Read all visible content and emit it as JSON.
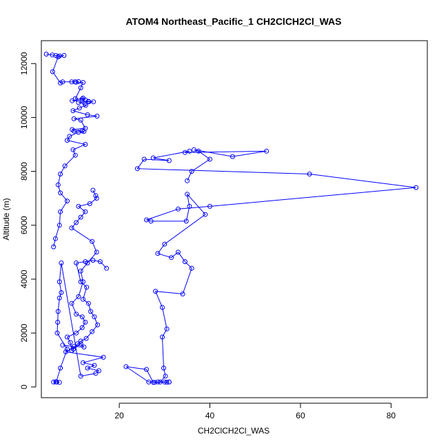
{
  "chart_data": {
    "type": "line",
    "title": "ATOM4 Northeast_Pacific_1 CH2ClCH2Cl_WAS",
    "xlabel": "CH2ClCH2Cl_WAS",
    "ylabel": "Altitude (m)",
    "xlim": [
      2.8,
      88.0
    ],
    "ylim": [
      -400,
      12850
    ],
    "x_ticks": [
      20,
      40,
      60,
      80
    ],
    "y_ticks": [
      0,
      2000,
      4000,
      6000,
      8000,
      10000,
      12000
    ],
    "color": "#0000ff",
    "marker": "open-circle",
    "grid": false,
    "series": [
      {
        "x": [
          3.9,
          5.2,
          6.0,
          6.8,
          7.8,
          6.5,
          5.3,
          7.0,
          7.5,
          9.5,
          10.2,
          11.0,
          10.5,
          12.0,
          11.5,
          10.3,
          12.5,
          11.8,
          12.0,
          9.6,
          13.2,
          14.3,
          13.3,
          11.0,
          12.4,
          12.6,
          11.2,
          9.8,
          13.0,
          15.1,
          10.0,
          11.5,
          12.5,
          9.6,
          10.0,
          11.8,
          12.2,
          11.0,
          9.0,
          8.5,
          12.5,
          9.8,
          10.3,
          8.0,
          7.0,
          6.5,
          7.0,
          8.5,
          7.0,
          6.8,
          5.9,
          5.5
        ],
        "y": [
          12350,
          12320,
          12300,
          12280,
          12300,
          12250,
          11700,
          11280,
          11320,
          11320,
          11320,
          11330,
          11310,
          11300,
          11100,
          10700,
          10650,
          10680,
          10720,
          10620,
          10600,
          10580,
          10580,
          10550,
          10500,
          10450,
          10350,
          10250,
          10100,
          10050,
          9950,
          9900,
          9600,
          9550,
          9500,
          9500,
          9480,
          9450,
          9300,
          9150,
          9000,
          8800,
          8600,
          8200,
          7900,
          7500,
          7200,
          6900,
          6500,
          6000,
          5500,
          5200
        ]
      },
      {
        "x": [
          7.5,
          10.0,
          12.2,
          11.5,
          8.2,
          16.5,
          12.0,
          14.5,
          13.0,
          15.5,
          14.8,
          11.5,
          7.2,
          6.8,
          7.2,
          6.8,
          6.5,
          6.4,
          6.3,
          8.5,
          7.0,
          6.1,
          6.2,
          6.8,
          5.5,
          6.0
        ],
        "y": [
          1550,
          1500,
          1480,
          1600,
          1300,
          1100,
          900,
          800,
          700,
          600,
          500,
          400,
          4600,
          3900,
          3500,
          3300,
          2800,
          2400,
          2000,
          1400,
          700,
          190,
          180,
          170,
          180,
          185
        ]
      },
      {
        "x": [
          17.2,
          15.8,
          14.2,
          12.5,
          10.5,
          11.5,
          12.8,
          12.0,
          13.2,
          13.7,
          14.5,
          15.2,
          14.0,
          12.7,
          11.5,
          10.8,
          9.9,
          9.5,
          9.2,
          8.5,
          10.5,
          11.8,
          12.5,
          11.8,
          10.5,
          9.5,
          11.0,
          12.0,
          11.5,
          13.0,
          15.0,
          14.0,
          9.5,
          10.5,
          11.5,
          12.5,
          11.0,
          13.5,
          15.0,
          14.8,
          14.2
        ],
        "y": [
          4400,
          4650,
          4700,
          4650,
          4600,
          3900,
          3700,
          3250,
          3100,
          2800,
          2600,
          2300,
          2050,
          1800,
          1700,
          1600,
          1400,
          1350,
          1650,
          1850,
          2000,
          2200,
          2400,
          2600,
          2700,
          3100,
          3350,
          3900,
          4300,
          4600,
          5000,
          5400,
          5900,
          6100,
          6300,
          6500,
          6700,
          6800,
          7000,
          7100,
          7300
        ]
      },
      {
        "x": [
          35.0,
          36.0,
          40.0,
          37.5,
          36.5,
          45.0,
          52.5,
          34.5,
          35.5,
          27.5,
          31.0,
          25.5,
          24.0,
          62.0,
          85.5,
          40.0,
          33.0,
          26.0,
          27.0,
          34.8,
          35.5,
          35.0,
          39.0,
          30.0,
          28.5,
          31.5,
          33.0,
          34.5,
          36.0,
          34.0,
          28.0,
          29.5,
          30.5,
          29.5,
          29.8,
          30.2,
          29.0,
          26.5,
          21.5,
          26.0,
          27.5,
          30.0,
          31.0,
          28.5
        ],
        "y": [
          7650,
          8000,
          8450,
          8750,
          8800,
          8550,
          8750,
          8700,
          8750,
          8500,
          8400,
          8450,
          8100,
          7900,
          7400,
          6700,
          6600,
          6200,
          6150,
          6150,
          6700,
          7150,
          6400,
          5300,
          4950,
          4800,
          5000,
          4650,
          4400,
          3450,
          3550,
          2950,
          2150,
          1850,
          700,
          400,
          180,
          180,
          750,
          650,
          170,
          180,
          180,
          185
        ]
      },
      {
        "x": [
          27.8,
          30.5,
          31.0
        ],
        "y": [
          170,
          175,
          180
        ]
      }
    ]
  }
}
